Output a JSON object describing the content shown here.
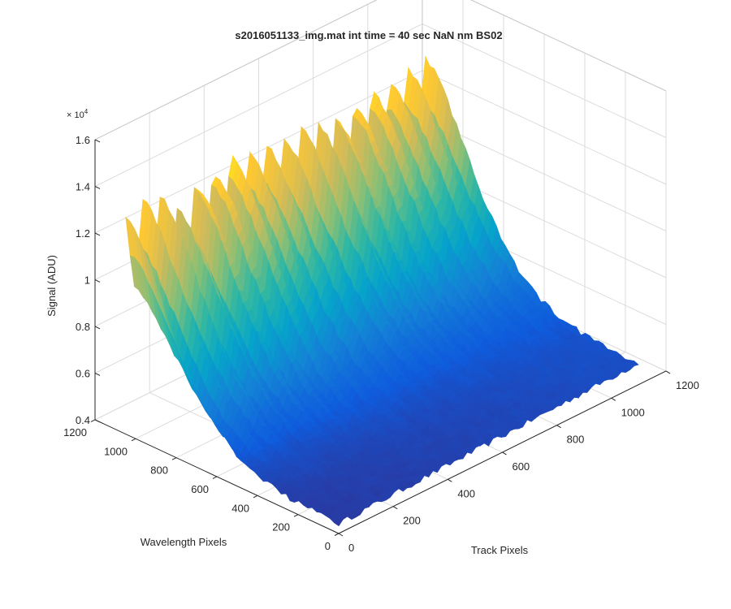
{
  "figure": {
    "background": "#ffffff"
  },
  "chart_data": {
    "type": "surface",
    "title": "s2016051133_img.mat int time = 40 sec  NaN nm BS02",
    "xlabel": "Track Pixels",
    "ylabel": "Wavelength Pixels",
    "zlabel": "Signal (ADU)",
    "xlim": [
      0,
      1200
    ],
    "ylim": [
      0,
      1200
    ],
    "zlim": [
      4000,
      16000
    ],
    "x_ticks": [
      0,
      200,
      400,
      600,
      800,
      1000,
      1200
    ],
    "y_ticks": [
      0,
      200,
      400,
      600,
      800,
      1000,
      1200
    ],
    "z_ticks": [
      0.4,
      0.6,
      0.8,
      1,
      1.2,
      1.4,
      1.6
    ],
    "x_tick_labels": [
      "0",
      "200",
      "400",
      "600",
      "800",
      "1000",
      "1200"
    ],
    "y_tick_labels": [
      "0",
      "200",
      "400",
      "600",
      "800",
      "1000",
      "1200"
    ],
    "z_tick_labels": [
      "0.4",
      "0.6",
      "0.8",
      "1",
      "1.2",
      "1.4",
      "1.6"
    ],
    "z_exponent_label": "× 10",
    "z_exponent": "4",
    "grid": true,
    "colormap": "parula",
    "colormap_stops": [
      "#352a87",
      "#0f5cdd",
      "#1481d6",
      "#06a4ca",
      "#2eb7a4",
      "#87bf77",
      "#d1bb59",
      "#fec832",
      "#f9fb0e"
    ],
    "surface": {
      "x_range": [
        1,
        1100
      ],
      "y_range": [
        1,
        1050
      ],
      "signal_floor": 4400,
      "ridge_count": 18,
      "ridge_peak_values": [
        13200,
        13700,
        13600,
        12700,
        13500,
        13500,
        13700,
        13400,
        13300,
        13300,
        13400,
        13300,
        13300,
        13400,
        13500,
        13400,
        13600,
        13700
      ],
      "ridge_decay_wavelength_pixels": 330
    }
  }
}
